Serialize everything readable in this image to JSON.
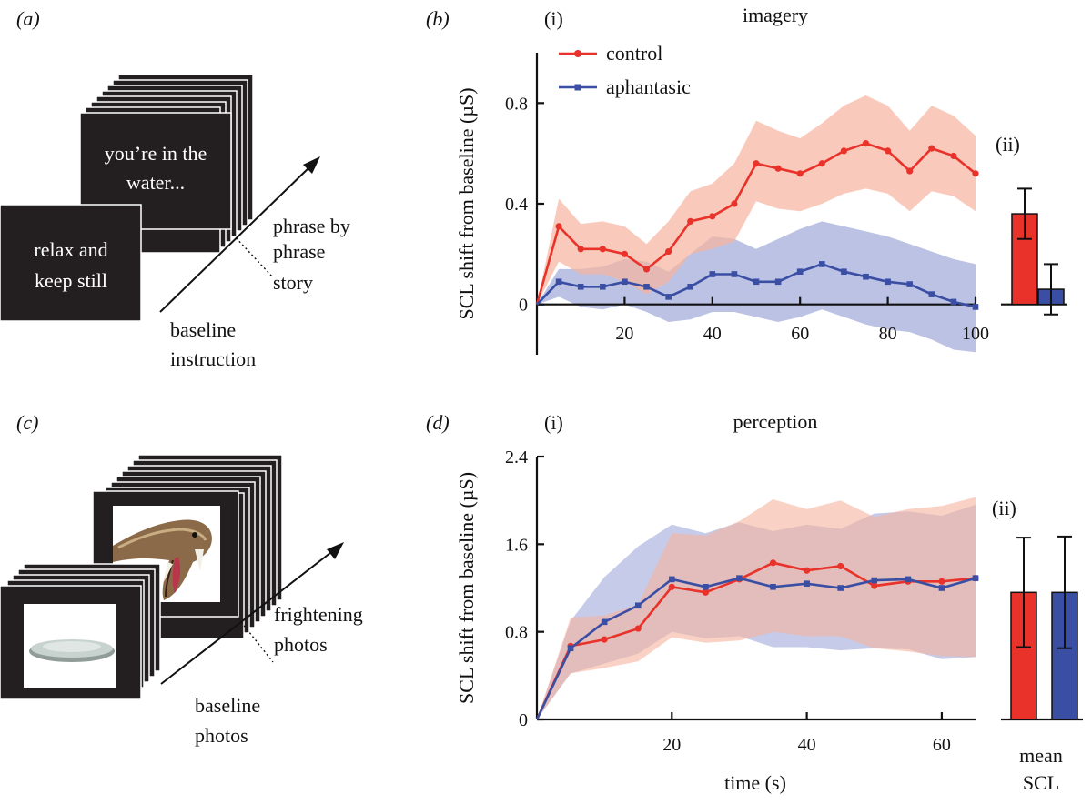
{
  "panels": {
    "a": {
      "label": "(a)",
      "card_front": [
        "relax and",
        "keep still"
      ],
      "card_back": [
        "you’re in the",
        "water..."
      ],
      "arrow_label": [
        "phrase by",
        "phrase",
        "story"
      ],
      "baseline_label": [
        "baseline",
        "instruction"
      ]
    },
    "c": {
      "label": "(c)",
      "arrow_label": [
        "frightening",
        "photos"
      ],
      "baseline_label": [
        "baseline",
        "photos"
      ]
    },
    "b": {
      "label": "(b)",
      "sub_i": "(i)",
      "sub_ii": "(ii)"
    },
    "d": {
      "label": "(d)",
      "sub_i": "(i)",
      "sub_ii": "(ii)"
    }
  },
  "legend": {
    "control": "control",
    "aphantasic": "aphantasic"
  },
  "colors": {
    "control": "#e8322a",
    "aphantasic": "#3a4fa3",
    "control_band": "#f7b49e",
    "aphantasic_band": "#9fa8d8"
  },
  "shared": {
    "xlabel": "time (s)",
    "bar_xlabel": [
      "mean",
      "SCL"
    ]
  },
  "chart_data": [
    {
      "type": "line",
      "title": "imagery",
      "ylabel": "SCL shift from baseline (µS)",
      "xlabel": "",
      "xlim": [
        0,
        100
      ],
      "ylim": [
        -0.2,
        1.0
      ],
      "xticks": [
        20,
        40,
        60,
        80,
        100
      ],
      "yticks": [
        0,
        0.4,
        0.8
      ],
      "ytick_labels": [
        "0",
        "0.4",
        "0.8"
      ],
      "x": [
        0,
        5,
        10,
        15,
        20,
        25,
        30,
        35,
        40,
        45,
        50,
        55,
        60,
        65,
        70,
        75,
        80,
        85,
        90,
        95,
        100
      ],
      "series": [
        {
          "name": "control",
          "values": [
            0,
            0.31,
            0.22,
            0.22,
            0.2,
            0.14,
            0.21,
            0.33,
            0.35,
            0.4,
            0.56,
            0.54,
            0.52,
            0.56,
            0.61,
            0.64,
            0.61,
            0.53,
            0.62,
            0.59,
            0.52
          ],
          "upper": [
            0,
            0.42,
            0.32,
            0.33,
            0.31,
            0.24,
            0.33,
            0.45,
            0.48,
            0.56,
            0.73,
            0.69,
            0.66,
            0.72,
            0.79,
            0.83,
            0.79,
            0.69,
            0.79,
            0.75,
            0.67
          ],
          "lower": [
            0,
            0.17,
            0.12,
            0.12,
            0.09,
            0.04,
            0.09,
            0.2,
            0.22,
            0.25,
            0.41,
            0.38,
            0.37,
            0.4,
            0.44,
            0.46,
            0.44,
            0.37,
            0.45,
            0.43,
            0.37
          ]
        },
        {
          "name": "aphantasic",
          "values": [
            0,
            0.09,
            0.07,
            0.07,
            0.09,
            0.07,
            0.03,
            0.07,
            0.12,
            0.12,
            0.09,
            0.09,
            0.13,
            0.16,
            0.13,
            0.11,
            0.09,
            0.08,
            0.04,
            0.01,
            -0.01
          ],
          "upper": [
            0,
            0.14,
            0.14,
            0.15,
            0.18,
            0.17,
            0.13,
            0.2,
            0.27,
            0.26,
            0.22,
            0.26,
            0.3,
            0.33,
            0.31,
            0.29,
            0.27,
            0.24,
            0.21,
            0.18,
            0.16
          ],
          "lower": [
            0,
            0.03,
            -0.01,
            -0.02,
            0.0,
            -0.03,
            -0.07,
            -0.06,
            -0.03,
            -0.03,
            -0.05,
            -0.07,
            -0.05,
            -0.02,
            -0.05,
            -0.08,
            -0.1,
            -0.11,
            -0.14,
            -0.18,
            -0.19
          ]
        }
      ]
    },
    {
      "type": "bar",
      "title": "",
      "categories": [
        "control",
        "aphantasic"
      ],
      "values": [
        0.36,
        0.06
      ],
      "errors": [
        0.1,
        0.1
      ],
      "ylim": [
        -0.2,
        1.0
      ]
    },
    {
      "type": "line",
      "title": "perception",
      "ylabel": "SCL shift from baseline (µS)",
      "xlabel": "time (s)",
      "xlim": [
        0,
        65
      ],
      "ylim": [
        0,
        2.4
      ],
      "xticks": [
        20,
        40,
        60
      ],
      "yticks": [
        0,
        0.8,
        1.6,
        2.4
      ],
      "ytick_labels": [
        "0",
        "0.8",
        "1.6",
        "2.4"
      ],
      "x": [
        0,
        5,
        10,
        15,
        20,
        25,
        30,
        35,
        40,
        45,
        50,
        55,
        60,
        65
      ],
      "series": [
        {
          "name": "control",
          "values": [
            0,
            0.67,
            0.73,
            0.83,
            1.21,
            1.16,
            1.28,
            1.43,
            1.36,
            1.4,
            1.22,
            1.26,
            1.26,
            1.29
          ],
          "upper": [
            0,
            0.93,
            0.95,
            1.05,
            1.7,
            1.68,
            1.81,
            2.01,
            1.92,
            2.0,
            1.85,
            1.92,
            1.95,
            2.03
          ],
          "lower": [
            0,
            0.42,
            0.47,
            0.53,
            0.75,
            0.7,
            0.72,
            0.8,
            0.76,
            0.76,
            0.65,
            0.62,
            0.58,
            0.57
          ]
        },
        {
          "name": "aphantasic",
          "values": [
            0,
            0.65,
            0.89,
            1.04,
            1.28,
            1.21,
            1.29,
            1.21,
            1.24,
            1.2,
            1.27,
            1.28,
            1.2,
            1.29
          ],
          "upper": [
            0,
            0.9,
            1.3,
            1.58,
            1.78,
            1.7,
            1.8,
            1.72,
            1.78,
            1.74,
            1.88,
            1.9,
            1.86,
            1.96
          ],
          "lower": [
            0,
            0.42,
            0.51,
            0.6,
            0.8,
            0.74,
            0.76,
            0.66,
            0.66,
            0.63,
            0.65,
            0.64,
            0.55,
            0.57
          ]
        }
      ]
    },
    {
      "type": "bar",
      "title": "",
      "categories": [
        "control",
        "aphantasic"
      ],
      "values": [
        1.16,
        1.16
      ],
      "errors": [
        0.5,
        0.51
      ],
      "ylim": [
        0,
        2.4
      ]
    }
  ]
}
